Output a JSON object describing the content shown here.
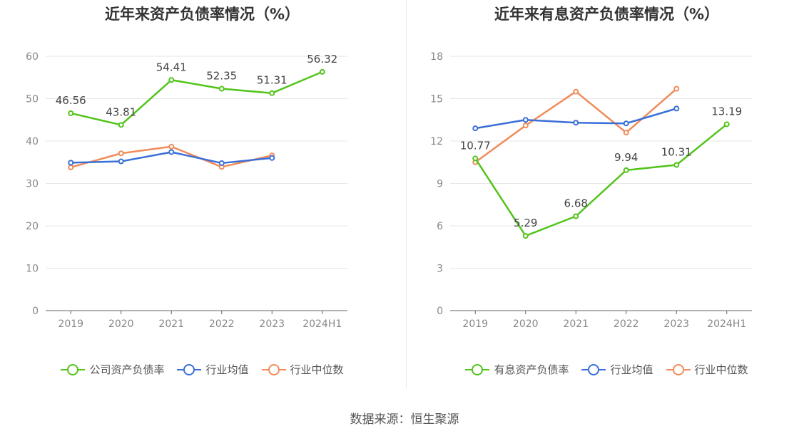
{
  "chart_data": [
    {
      "type": "line",
      "title": "近年来资产负债率情况（%）",
      "categories": [
        "2019",
        "2020",
        "2021",
        "2022",
        "2023",
        "2024H1"
      ],
      "ylim": [
        0,
        60
      ],
      "yticks": [
        0,
        10,
        20,
        30,
        40,
        50,
        60
      ],
      "grid": true,
      "legend_position": "bottom",
      "series": [
        {
          "name": "公司资产负债率",
          "color": "#52c41a",
          "values": [
            46.56,
            43.81,
            54.41,
            52.35,
            51.31,
            56.32
          ],
          "labels": true
        },
        {
          "name": "行业均值",
          "color": "#3a6fd8",
          "values": [
            34.9,
            35.2,
            37.4,
            34.8,
            36.0,
            null
          ],
          "labels": false
        },
        {
          "name": "行业中位数",
          "color": "#f08c5a",
          "values": [
            33.8,
            37.1,
            38.7,
            33.9,
            36.6,
            null
          ],
          "labels": false
        }
      ]
    },
    {
      "type": "line",
      "title": "近年来有息资产负债率情况（%）",
      "categories": [
        "2019",
        "2020",
        "2021",
        "2022",
        "2023",
        "2024H1"
      ],
      "ylim": [
        0,
        18
      ],
      "yticks": [
        0,
        3,
        6,
        9,
        12,
        15,
        18
      ],
      "grid": true,
      "legend_position": "bottom",
      "series": [
        {
          "name": "有息资产负债率",
          "color": "#52c41a",
          "values": [
            10.77,
            5.29,
            6.68,
            9.94,
            10.31,
            13.19
          ],
          "labels": true
        },
        {
          "name": "行业均值",
          "color": "#3a6fd8",
          "values": [
            12.9,
            13.5,
            13.3,
            13.25,
            14.3,
            null
          ],
          "labels": false
        },
        {
          "name": "行业中位数",
          "color": "#f08c5a",
          "values": [
            10.5,
            13.1,
            15.5,
            12.6,
            15.7,
            null
          ],
          "labels": false
        }
      ]
    }
  ],
  "source": "数据来源：恒生聚源"
}
